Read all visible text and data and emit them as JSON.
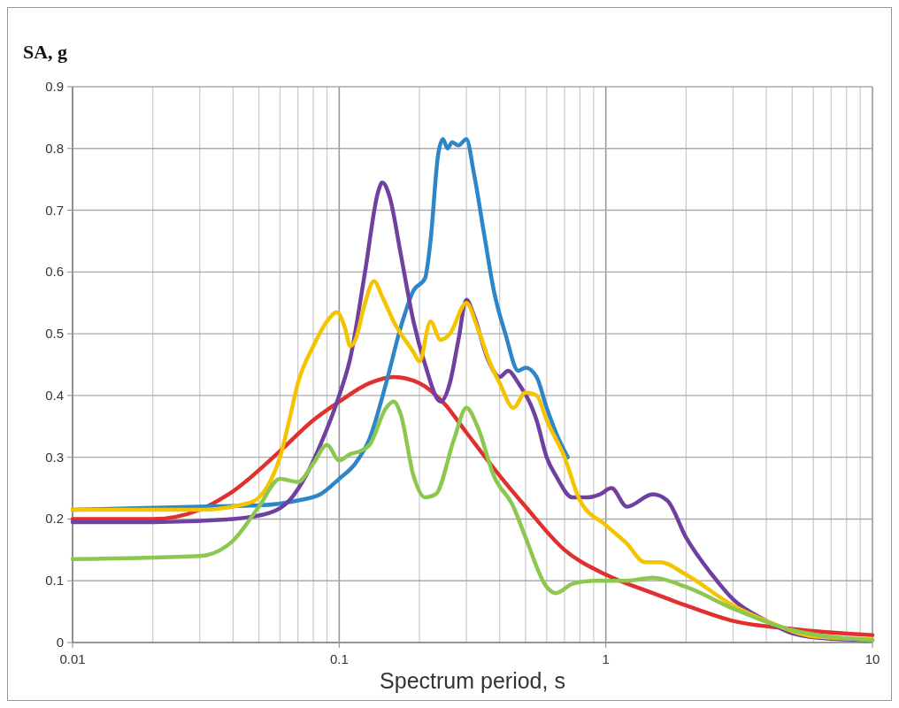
{
  "chart_data": {
    "type": "line",
    "xlabel": "Spectrum period, s",
    "ylabel": "SA, g",
    "log": "x",
    "grid": true,
    "marker": "none",
    "line_style": "solid",
    "xlim": [
      0.01,
      10
    ],
    "ylim": [
      0,
      0.9
    ],
    "xticks": [
      0.01,
      {
        "value": 0.02,
        "label": null
      },
      {
        "value": 0.03,
        "label": null
      },
      {
        "value": 0.04,
        "label": null
      },
      {
        "value": 0.05,
        "label": null
      },
      {
        "value": 0.06,
        "label": null
      },
      {
        "value": 0.07,
        "label": null
      },
      {
        "value": 0.08,
        "label": null
      },
      {
        "value": 0.09,
        "label": null
      },
      0.1,
      {
        "value": 0.2,
        "label": null
      },
      {
        "value": 0.3,
        "label": null
      },
      {
        "value": 0.4,
        "label": null
      },
      {
        "value": 0.5,
        "label": null
      },
      {
        "value": 0.6,
        "label": null
      },
      {
        "value": 0.7,
        "label": null
      },
      {
        "value": 0.8,
        "label": null
      },
      {
        "value": 0.9,
        "label": null
      },
      1,
      {
        "value": 2,
        "label": null
      },
      {
        "value": 3,
        "label": null
      },
      {
        "value": 4,
        "label": null
      },
      {
        "value": 5,
        "label": null
      },
      {
        "value": 6,
        "label": null
      },
      {
        "value": 7,
        "label": null
      },
      {
        "value": 8,
        "label": null
      },
      {
        "value": 9,
        "label": null
      },
      10
    ],
    "yticks": [
      {
        "value": 0,
        "label": "0"
      },
      0.1,
      0.2,
      0.3,
      0.4,
      0.5,
      0.6,
      0.7,
      0.8,
      0.9
    ],
    "series": [
      {
        "color": "#e03030",
        "x": [
          0.01,
          0.02,
          0.03,
          0.04,
          0.06,
          0.08,
          0.1,
          0.13,
          0.16,
          0.2,
          0.25,
          0.3,
          0.4,
          0.5,
          0.7,
          1,
          1.5,
          2,
          3,
          5,
          10
        ],
        "values": [
          0.2,
          0.2,
          0.215,
          0.245,
          0.31,
          0.36,
          0.39,
          0.42,
          0.43,
          0.42,
          0.385,
          0.34,
          0.27,
          0.22,
          0.15,
          0.11,
          0.08,
          0.06,
          0.035,
          0.022,
          0.012
        ]
      },
      {
        "color": "#2e86c8",
        "x": [
          0.01,
          0.03,
          0.05,
          0.07,
          0.085,
          0.1,
          0.115,
          0.13,
          0.15,
          0.17,
          0.19,
          0.21,
          0.22,
          0.235,
          0.245,
          0.255,
          0.265,
          0.28,
          0.3,
          0.32,
          0.35,
          0.38,
          0.42,
          0.47,
          0.5,
          0.55,
          0.6,
          0.65,
          0.72
        ],
        "values": [
          0.215,
          0.22,
          0.222,
          0.23,
          0.24,
          0.265,
          0.29,
          0.33,
          0.42,
          0.51,
          0.57,
          0.59,
          0.65,
          0.79,
          0.815,
          0.8,
          0.81,
          0.805,
          0.815,
          0.76,
          0.66,
          0.57,
          0.5,
          0.44,
          0.445,
          0.43,
          0.38,
          0.34,
          0.3
        ]
      },
      {
        "color": "#7040a0",
        "x": [
          0.01,
          0.02,
          0.04,
          0.055,
          0.065,
          0.075,
          0.085,
          0.1,
          0.11,
          0.125,
          0.14,
          0.145,
          0.155,
          0.17,
          0.19,
          0.21,
          0.24,
          0.26,
          0.28,
          0.3,
          0.32,
          0.36,
          0.4,
          0.43,
          0.47,
          0.55,
          0.6,
          0.65,
          0.75,
          0.85,
          0.95,
          1.05,
          1.2,
          1.5,
          1.7,
          2,
          2.5,
          3,
          4,
          5,
          7,
          10
        ],
        "values": [
          0.195,
          0.195,
          0.2,
          0.21,
          0.23,
          0.27,
          0.32,
          0.4,
          0.46,
          0.6,
          0.73,
          0.745,
          0.72,
          0.63,
          0.52,
          0.45,
          0.39,
          0.42,
          0.49,
          0.555,
          0.53,
          0.46,
          0.43,
          0.44,
          0.42,
          0.36,
          0.3,
          0.27,
          0.235,
          0.235,
          0.24,
          0.25,
          0.22,
          0.24,
          0.23,
          0.17,
          0.11,
          0.07,
          0.035,
          0.015,
          0.006,
          0.004
        ]
      },
      {
        "color": "#f5c400",
        "x": [
          0.01,
          0.03,
          0.045,
          0.05,
          0.055,
          0.06,
          0.065,
          0.07,
          0.08,
          0.09,
          0.098,
          0.105,
          0.11,
          0.115,
          0.125,
          0.135,
          0.145,
          0.16,
          0.19,
          0.2,
          0.22,
          0.24,
          0.26,
          0.3,
          0.33,
          0.37,
          0.4,
          0.45,
          0.5,
          0.55,
          0.6,
          0.7,
          0.8,
          1,
          1.2,
          1.4,
          1.6,
          2,
          3,
          4,
          6,
          10
        ],
        "values": [
          0.215,
          0.215,
          0.225,
          0.235,
          0.26,
          0.3,
          0.36,
          0.42,
          0.48,
          0.52,
          0.535,
          0.51,
          0.48,
          0.49,
          0.55,
          0.585,
          0.56,
          0.52,
          0.47,
          0.455,
          0.52,
          0.49,
          0.5,
          0.55,
          0.51,
          0.45,
          0.42,
          0.38,
          0.405,
          0.4,
          0.36,
          0.3,
          0.23,
          0.19,
          0.16,
          0.13,
          0.13,
          0.11,
          0.06,
          0.035,
          0.01,
          0.005
        ]
      },
      {
        "color": "#8cc850",
        "x": [
          0.01,
          0.03,
          0.04,
          0.05,
          0.06,
          0.07,
          0.08,
          0.09,
          0.1,
          0.11,
          0.12,
          0.13,
          0.15,
          0.16,
          0.17,
          0.19,
          0.21,
          0.23,
          0.27,
          0.3,
          0.33,
          0.38,
          0.45,
          0.5,
          0.6,
          0.65,
          0.75,
          0.9,
          1,
          1.2,
          1.5,
          2,
          3,
          5,
          10
        ],
        "values": [
          0.135,
          0.14,
          0.165,
          0.22,
          0.265,
          0.26,
          0.29,
          0.32,
          0.295,
          0.305,
          0.31,
          0.32,
          0.38,
          0.39,
          0.37,
          0.27,
          0.235,
          0.24,
          0.33,
          0.38,
          0.35,
          0.27,
          0.22,
          0.17,
          0.09,
          0.08,
          0.095,
          0.1,
          0.1,
          0.1,
          0.105,
          0.09,
          0.055,
          0.02,
          0.004
        ]
      }
    ]
  }
}
